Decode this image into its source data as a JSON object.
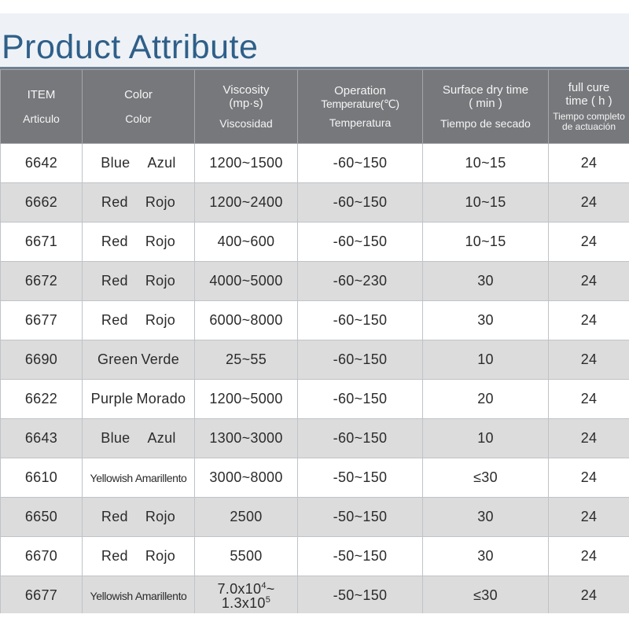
{
  "title": "Product Attribute",
  "headers": [
    {
      "en_1": "ITEM",
      "en_2": "",
      "es": "Articulo"
    },
    {
      "en_1": "Color",
      "en_2": "",
      "es": "Color"
    },
    {
      "en_1": "Viscosity",
      "en_2": "(mp·s)",
      "es": "Viscosidad"
    },
    {
      "en_1": "Operation",
      "en_2": "Temperature(℃)",
      "es": "Temperatura"
    },
    {
      "en_1": "Surface dry time",
      "en_2": "( min )",
      "es": "Tiempo  de secado"
    },
    {
      "en_1": "full cure",
      "en_2": "time ( h )",
      "es": "Tiempo completo",
      "es_2": "de actuación"
    }
  ],
  "rows": [
    {
      "item": "6642",
      "color_en": "Blue",
      "color_es": "Azul",
      "viscosity": "1200~1500",
      "temperature": "-60~150",
      "dry_time": "10~15",
      "cure_time": "24"
    },
    {
      "item": "6662",
      "color_en": "Red",
      "color_es": "Rojo",
      "viscosity": "1200~2400",
      "temperature": "-60~150",
      "dry_time": "10~15",
      "cure_time": "24"
    },
    {
      "item": "6671",
      "color_en": "Red",
      "color_es": "Rojo",
      "viscosity": "400~600",
      "temperature": "-60~150",
      "dry_time": "10~15",
      "cure_time": "24"
    },
    {
      "item": "6672",
      "color_en": "Red",
      "color_es": "Rojo",
      "viscosity": "4000~5000",
      "temperature": "-60~230",
      "dry_time": "30",
      "cure_time": "24"
    },
    {
      "item": "6677",
      "color_en": "Red",
      "color_es": "Rojo",
      "viscosity": "6000~8000",
      "temperature": "-60~150",
      "dry_time": "30",
      "cure_time": "24"
    },
    {
      "item": "6690",
      "color_en": "Green",
      "color_es": "Verde",
      "viscosity": "25~55",
      "temperature": "-60~150",
      "dry_time": "10",
      "cure_time": "24"
    },
    {
      "item": "6622",
      "color_en": "Purple",
      "color_es": "Morado",
      "viscosity": "1200~5000",
      "temperature": "-60~150",
      "dry_time": "20",
      "cure_time": "24"
    },
    {
      "item": "6643",
      "color_en": "Blue",
      "color_es": "Azul",
      "viscosity": "1300~3000",
      "temperature": "-60~150",
      "dry_time": "10",
      "cure_time": "24"
    },
    {
      "item": "6610",
      "color_en": "Yellowish",
      "color_es": "Amarillento",
      "viscosity": "3000~8000",
      "temperature": "-50~150",
      "dry_time": "≤30",
      "cure_time": "24"
    },
    {
      "item": "6650",
      "color_en": "Red",
      "color_es": "Rojo",
      "viscosity": "2500",
      "temperature": "-50~150",
      "dry_time": "30",
      "cure_time": "24"
    },
    {
      "item": "6670",
      "color_en": "Red",
      "color_es": "Rojo",
      "viscosity": "5500",
      "temperature": "-50~150",
      "dry_time": "30",
      "cure_time": "24"
    },
    {
      "item": "6677",
      "color_en": "Yellowish",
      "color_es": "Amarillento",
      "viscosity_line1": "7.0x10",
      "viscosity_exp1": "4",
      "viscosity_line1_suffix": "~",
      "viscosity_line2": "1.3x10",
      "viscosity_exp2": "5",
      "temperature": "-50~150",
      "dry_time": "≤30",
      "cure_time": "24"
    }
  ]
}
